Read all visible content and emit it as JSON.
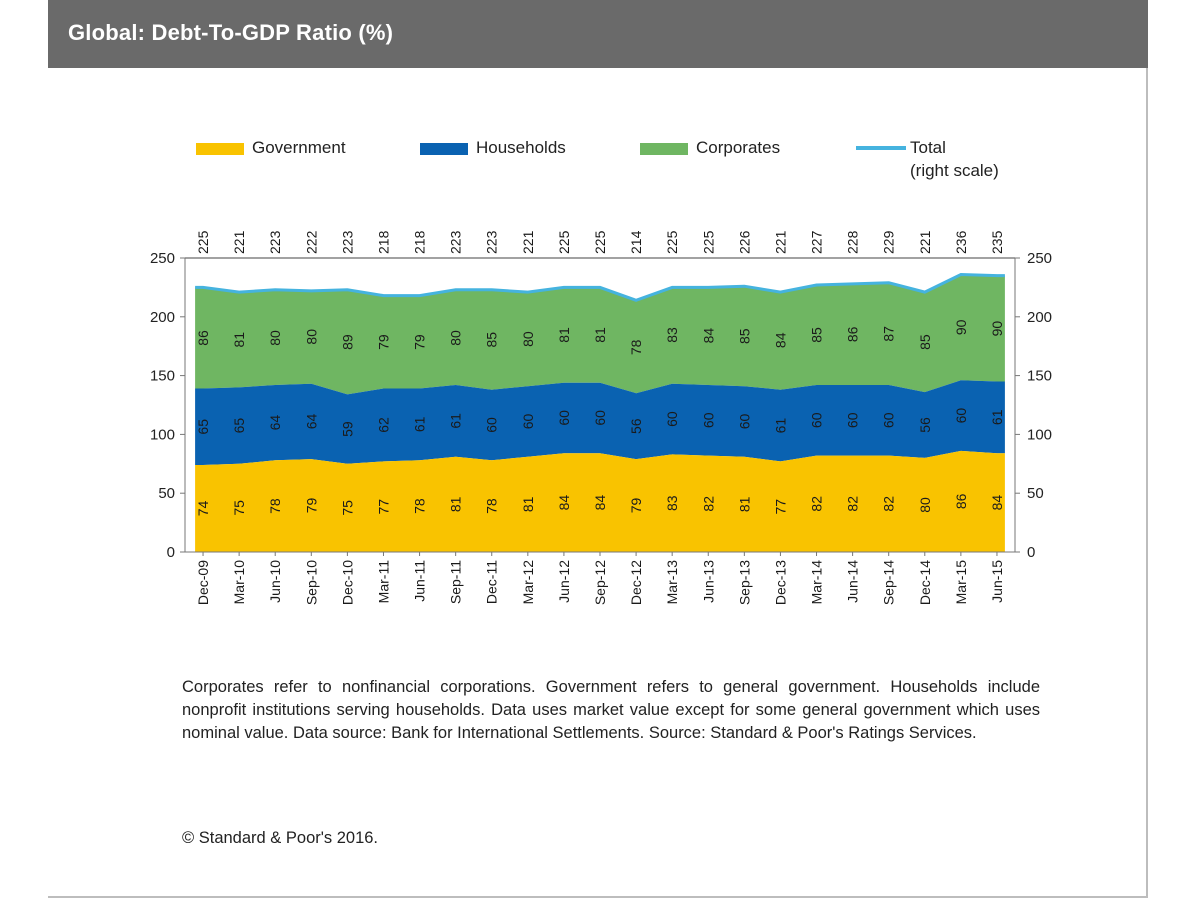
{
  "header": {
    "title": "Global: Debt-To-GDP Ratio (%)"
  },
  "legend": {
    "government": "Government",
    "households": "Households",
    "corporates": "Corporates",
    "total_line1": "Total",
    "total_line2": "(right scale)"
  },
  "colors": {
    "government": "#f9c300",
    "households": "#0a62b1",
    "corporates": "#6fb662",
    "total": "#45b3df",
    "title_bar": "#6a6a6a"
  },
  "chart_data": {
    "type": "area",
    "stacked": true,
    "categories": [
      "Dec-09",
      "Mar-10",
      "Jun-10",
      "Sep-10",
      "Dec-10",
      "Mar-11",
      "Jun-11",
      "Sep-11",
      "Dec-11",
      "Mar-12",
      "Jun-12",
      "Sep-12",
      "Dec-12",
      "Mar-13",
      "Jun-13",
      "Sep-13",
      "Dec-13",
      "Mar-14",
      "Jun-14",
      "Sep-14",
      "Dec-14",
      "Mar-15",
      "Jun-15"
    ],
    "series": [
      {
        "name": "Government",
        "values": [
          74,
          75,
          78,
          79,
          75,
          77,
          78,
          81,
          78,
          81,
          84,
          84,
          79,
          83,
          82,
          81,
          77,
          82,
          82,
          82,
          80,
          86,
          84
        ]
      },
      {
        "name": "Households",
        "values": [
          65,
          65,
          64,
          64,
          59,
          62,
          61,
          61,
          60,
          60,
          60,
          60,
          56,
          60,
          60,
          60,
          61,
          60,
          60,
          60,
          56,
          60,
          61
        ]
      },
      {
        "name": "Corporates",
        "values": [
          86,
          81,
          80,
          80,
          89,
          79,
          79,
          80,
          85,
          80,
          81,
          81,
          78,
          83,
          84,
          85,
          84,
          85,
          86,
          87,
          85,
          90,
          90
        ]
      },
      {
        "name": "Total",
        "axis": "right",
        "values": [
          225,
          221,
          223,
          222,
          223,
          218,
          218,
          223,
          223,
          221,
          225,
          225,
          214,
          225,
          225,
          226,
          221,
          227,
          228,
          229,
          221,
          236,
          235
        ]
      }
    ],
    "ylim_left": [
      0,
      250
    ],
    "ylim_right": [
      0,
      250
    ],
    "yticks": [
      0,
      50,
      100,
      150,
      200,
      250
    ],
    "legend_position": "top"
  },
  "note": "Corporates refer to nonfinancial corporations. Government refers to general government. Households include nonprofit institutions serving households. Data uses market value except for some general government which uses nominal value. Data source: Bank for International Settlements. Source: Standard & Poor's Ratings Services.",
  "copyright": "© Standard & Poor's 2016."
}
